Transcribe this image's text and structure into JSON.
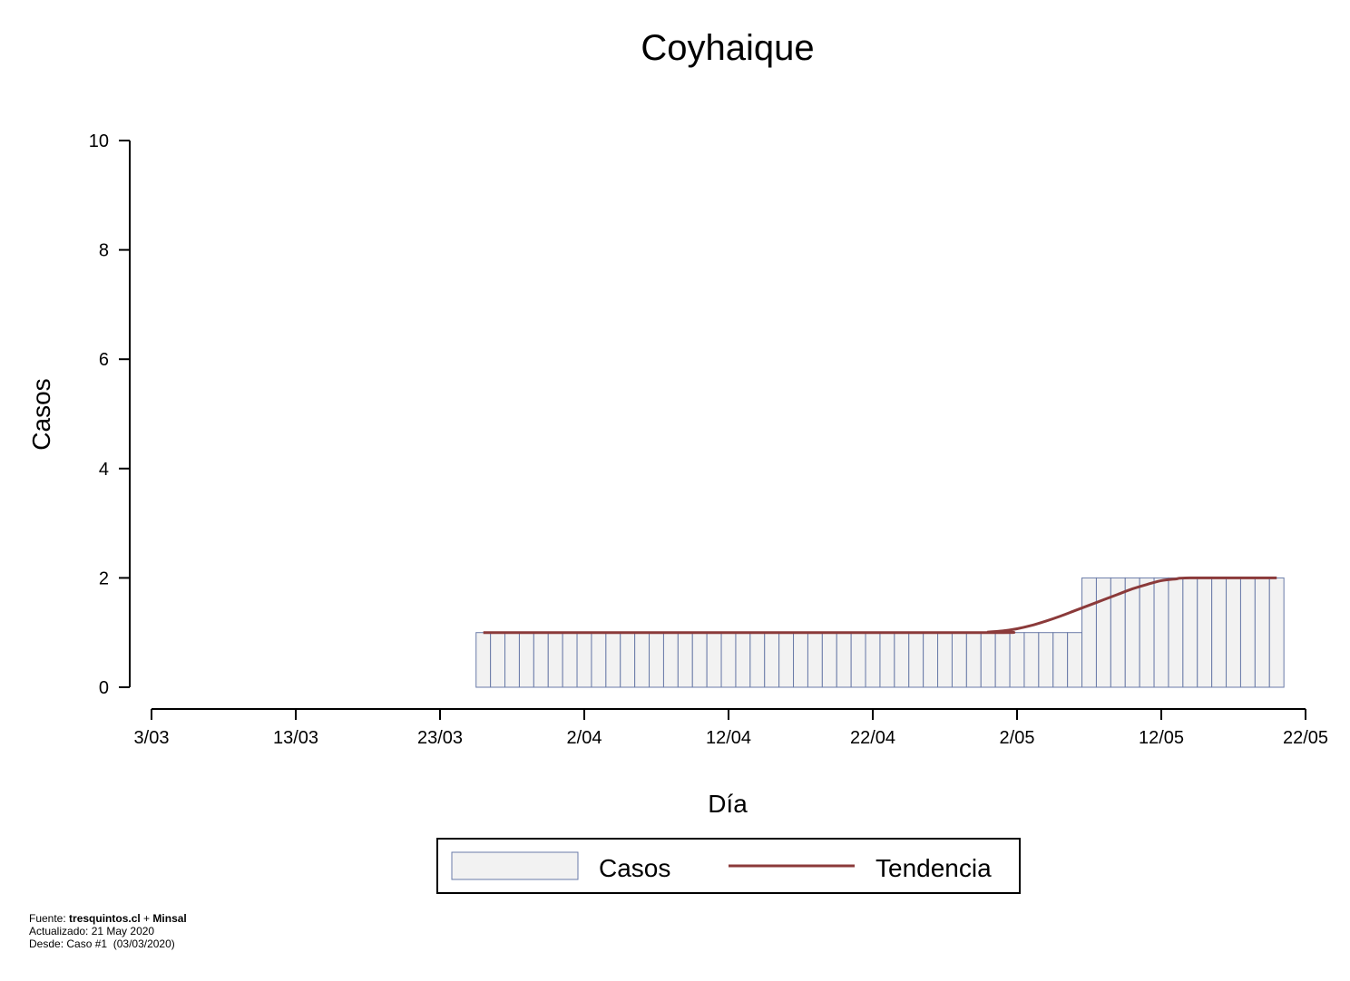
{
  "chart_data": {
    "type": "bar",
    "title": "Coyhaique",
    "xlabel": "Día",
    "ylabel": "Casos",
    "x_start": "3/03",
    "x_end": "22/05",
    "x_ticks": [
      "3/03",
      "13/03",
      "23/03",
      "2/04",
      "12/04",
      "22/04",
      "2/05",
      "12/05",
      "22/05"
    ],
    "y_ticks": [
      "0",
      "2",
      "4",
      "6",
      "8",
      "10"
    ],
    "ylim": [
      0,
      10
    ],
    "grid": false,
    "legend_position": "bottom-center",
    "series": [
      {
        "name": "Casos",
        "kind": "bar",
        "color": "#f2f2f2",
        "border_color": "#6a7ba8",
        "points": [
          {
            "date": "26/03",
            "value": 1
          },
          {
            "date": "27/03",
            "value": 1
          },
          {
            "date": "28/03",
            "value": 1
          },
          {
            "date": "29/03",
            "value": 1
          },
          {
            "date": "30/03",
            "value": 1
          },
          {
            "date": "31/03",
            "value": 1
          },
          {
            "date": "1/04",
            "value": 1
          },
          {
            "date": "2/04",
            "value": 1
          },
          {
            "date": "3/04",
            "value": 1
          },
          {
            "date": "4/04",
            "value": 1
          },
          {
            "date": "5/04",
            "value": 1
          },
          {
            "date": "6/04",
            "value": 1
          },
          {
            "date": "7/04",
            "value": 1
          },
          {
            "date": "8/04",
            "value": 1
          },
          {
            "date": "9/04",
            "value": 1
          },
          {
            "date": "10/04",
            "value": 1
          },
          {
            "date": "11/04",
            "value": 1
          },
          {
            "date": "12/04",
            "value": 1
          },
          {
            "date": "13/04",
            "value": 1
          },
          {
            "date": "14/04",
            "value": 1
          },
          {
            "date": "15/04",
            "value": 1
          },
          {
            "date": "16/04",
            "value": 1
          },
          {
            "date": "17/04",
            "value": 1
          },
          {
            "date": "18/04",
            "value": 1
          },
          {
            "date": "19/04",
            "value": 1
          },
          {
            "date": "20/04",
            "value": 1
          },
          {
            "date": "21/04",
            "value": 1
          },
          {
            "date": "22/04",
            "value": 1
          },
          {
            "date": "23/04",
            "value": 1
          },
          {
            "date": "24/04",
            "value": 1
          },
          {
            "date": "25/04",
            "value": 1
          },
          {
            "date": "26/04",
            "value": 1
          },
          {
            "date": "27/04",
            "value": 1
          },
          {
            "date": "28/04",
            "value": 1
          },
          {
            "date": "29/04",
            "value": 1
          },
          {
            "date": "30/04",
            "value": 1
          },
          {
            "date": "1/05",
            "value": 1
          },
          {
            "date": "2/05",
            "value": 1
          },
          {
            "date": "3/05",
            "value": 1
          },
          {
            "date": "4/05",
            "value": 1
          },
          {
            "date": "5/05",
            "value": 1
          },
          {
            "date": "6/05",
            "value": 1
          },
          {
            "date": "7/05",
            "value": 2
          },
          {
            "date": "8/05",
            "value": 2
          },
          {
            "date": "9/05",
            "value": 2
          },
          {
            "date": "10/05",
            "value": 2
          },
          {
            "date": "11/05",
            "value": 2
          },
          {
            "date": "12/05",
            "value": 2
          },
          {
            "date": "13/05",
            "value": 2
          },
          {
            "date": "14/05",
            "value": 2
          },
          {
            "date": "15/05",
            "value": 2
          },
          {
            "date": "16/05",
            "value": 2
          },
          {
            "date": "17/05",
            "value": 2
          },
          {
            "date": "18/05",
            "value": 2
          },
          {
            "date": "19/05",
            "value": 2
          },
          {
            "date": "20/05",
            "value": 2
          }
        ]
      },
      {
        "name": "Tendencia",
        "kind": "line",
        "color": "#8b3a3a",
        "points": [
          {
            "date": "26/03",
            "value": 1.0
          },
          {
            "date": "29/04",
            "value": 1.0
          },
          {
            "date": "30/04",
            "value": 1.01
          },
          {
            "date": "1/05",
            "value": 1.03
          },
          {
            "date": "2/05",
            "value": 1.07
          },
          {
            "date": "3/05",
            "value": 1.13
          },
          {
            "date": "4/05",
            "value": 1.21
          },
          {
            "date": "5/05",
            "value": 1.3
          },
          {
            "date": "6/05",
            "value": 1.4
          },
          {
            "date": "7/05",
            "value": 1.5
          },
          {
            "date": "8/05",
            "value": 1.6
          },
          {
            "date": "9/05",
            "value": 1.7
          },
          {
            "date": "10/05",
            "value": 1.8
          },
          {
            "date": "11/05",
            "value": 1.88
          },
          {
            "date": "12/05",
            "value": 1.95
          },
          {
            "date": "13/05",
            "value": 1.98
          },
          {
            "date": "14/05",
            "value": 2.0
          },
          {
            "date": "20/05",
            "value": 2.0
          }
        ]
      }
    ]
  },
  "footer": {
    "fuente_label": "Fuente: ",
    "fuente_site": "tresquintos.cl",
    "fuente_plus": " + ",
    "fuente_org": "Minsal",
    "actualizado": "Actualizado: 21 May 2020",
    "desde": "Desde: Caso #1  (03/03/2020)"
  }
}
